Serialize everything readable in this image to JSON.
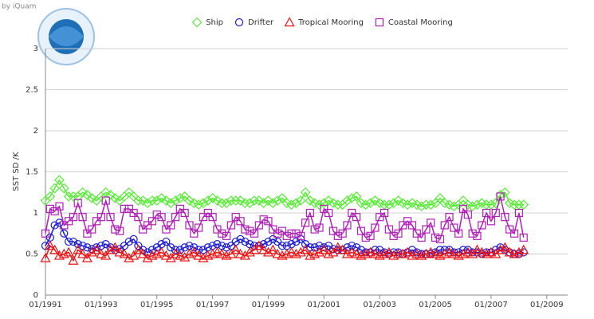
{
  "chart_data": {
    "type": "line",
    "credit": "by iQuam",
    "ylabel": "SST SD /K",
    "x": [
      "1991-01",
      "1991-03",
      "1991-05",
      "1991-07",
      "1991-09",
      "1991-11",
      "1992-01",
      "1992-03",
      "1992-05",
      "1992-07",
      "1992-09",
      "1992-11",
      "1993-01",
      "1993-03",
      "1993-05",
      "1993-07",
      "1993-09",
      "1993-11",
      "1994-01",
      "1994-03",
      "1994-05",
      "1994-07",
      "1994-09",
      "1994-11",
      "1995-01",
      "1995-03",
      "1995-05",
      "1995-07",
      "1995-09",
      "1995-11",
      "1996-01",
      "1996-03",
      "1996-05",
      "1996-07",
      "1996-09",
      "1996-11",
      "1997-01",
      "1997-03",
      "1997-05",
      "1997-07",
      "1997-09",
      "1997-11",
      "1998-01",
      "1998-03",
      "1998-05",
      "1998-07",
      "1998-09",
      "1998-11",
      "1999-01",
      "1999-03",
      "1999-05",
      "1999-07",
      "1999-09",
      "1999-11",
      "2000-01",
      "2000-03",
      "2000-05",
      "2000-07",
      "2000-09",
      "2000-11",
      "2001-01",
      "2001-03",
      "2001-05",
      "2001-07",
      "2001-09",
      "2001-11",
      "2002-01",
      "2002-03",
      "2002-05",
      "2002-07",
      "2002-09",
      "2002-11",
      "2003-01",
      "2003-03",
      "2003-05",
      "2003-07",
      "2003-09",
      "2003-11",
      "2004-01",
      "2004-03",
      "2004-05",
      "2004-07",
      "2004-09",
      "2004-11",
      "2005-01",
      "2005-03",
      "2005-05",
      "2005-07",
      "2005-09",
      "2005-11",
      "2006-01",
      "2006-03",
      "2006-05",
      "2006-07",
      "2006-09",
      "2006-11",
      "2007-01",
      "2007-03",
      "2007-05",
      "2007-07",
      "2007-09",
      "2007-11",
      "2008-01",
      "2008-03"
    ],
    "series": [
      {
        "name": "Ship",
        "color": "#55ee33",
        "marker": "diamond",
        "values": [
          1.15,
          1.2,
          1.3,
          1.4,
          1.3,
          1.2,
          1.2,
          1.2,
          1.25,
          1.22,
          1.18,
          1.15,
          1.2,
          1.25,
          1.22,
          1.18,
          1.15,
          1.2,
          1.25,
          1.2,
          1.15,
          1.15,
          1.12,
          1.15,
          1.15,
          1.18,
          1.15,
          1.12,
          1.15,
          1.18,
          1.2,
          1.15,
          1.12,
          1.1,
          1.12,
          1.15,
          1.18,
          1.15,
          1.12,
          1.12,
          1.15,
          1.15,
          1.15,
          1.12,
          1.12,
          1.15,
          1.15,
          1.12,
          1.15,
          1.12,
          1.15,
          1.18,
          1.12,
          1.1,
          1.12,
          1.15,
          1.25,
          1.15,
          1.12,
          1.1,
          1.12,
          1.15,
          1.12,
          1.1,
          1.1,
          1.15,
          1.18,
          1.2,
          1.12,
          1.1,
          1.12,
          1.15,
          1.12,
          1.1,
          1.1,
          1.12,
          1.15,
          1.12,
          1.1,
          1.12,
          1.1,
          1.08,
          1.1,
          1.1,
          1.12,
          1.18,
          1.12,
          1.1,
          1.08,
          1.1,
          1.15,
          1.1,
          1.08,
          1.1,
          1.12,
          1.1,
          1.1,
          1.12,
          1.22,
          1.25,
          1.12,
          1.1,
          1.1,
          1.1
        ]
      },
      {
        "name": "Drifter",
        "color": "#1a1ad8",
        "marker": "circle",
        "values": [
          0.6,
          0.7,
          0.85,
          0.88,
          0.75,
          0.65,
          0.65,
          0.62,
          0.6,
          0.58,
          0.56,
          0.58,
          0.6,
          0.62,
          0.58,
          0.55,
          0.56,
          0.6,
          0.65,
          0.68,
          0.6,
          0.55,
          0.52,
          0.55,
          0.58,
          0.62,
          0.65,
          0.58,
          0.55,
          0.55,
          0.58,
          0.6,
          0.58,
          0.55,
          0.55,
          0.58,
          0.6,
          0.62,
          0.6,
          0.58,
          0.6,
          0.65,
          0.68,
          0.65,
          0.62,
          0.6,
          0.6,
          0.62,
          0.65,
          0.68,
          0.65,
          0.6,
          0.6,
          0.62,
          0.65,
          0.68,
          0.62,
          0.58,
          0.58,
          0.6,
          0.58,
          0.6,
          0.56,
          0.55,
          0.55,
          0.58,
          0.6,
          0.58,
          0.55,
          0.52,
          0.52,
          0.55,
          0.55,
          0.52,
          0.5,
          0.52,
          0.52,
          0.5,
          0.52,
          0.55,
          0.52,
          0.5,
          0.5,
          0.5,
          0.52,
          0.55,
          0.55,
          0.55,
          0.52,
          0.52,
          0.55,
          0.55,
          0.52,
          0.52,
          0.5,
          0.52,
          0.52,
          0.55,
          0.58,
          0.55,
          0.52,
          0.5,
          0.5,
          0.52
        ]
      },
      {
        "name": "Tropical Mooring",
        "color": "#ee1111",
        "marker": "triangle",
        "values": [
          0.45,
          0.6,
          0.55,
          0.48,
          0.5,
          0.52,
          0.42,
          0.55,
          0.5,
          0.45,
          0.52,
          0.55,
          0.5,
          0.48,
          0.55,
          0.58,
          0.52,
          0.5,
          0.45,
          0.48,
          0.55,
          0.5,
          0.45,
          0.48,
          0.5,
          0.52,
          0.48,
          0.45,
          0.5,
          0.48,
          0.46,
          0.5,
          0.52,
          0.48,
          0.45,
          0.48,
          0.5,
          0.52,
          0.5,
          0.48,
          0.5,
          0.55,
          0.5,
          0.48,
          0.52,
          0.55,
          0.6,
          0.55,
          0.52,
          0.55,
          0.5,
          0.48,
          0.5,
          0.52,
          0.5,
          0.52,
          0.55,
          0.48,
          0.5,
          0.52,
          0.55,
          0.5,
          0.52,
          0.58,
          0.55,
          0.5,
          0.52,
          0.5,
          0.48,
          0.5,
          0.52,
          0.5,
          0.48,
          0.5,
          0.52,
          0.48,
          0.5,
          0.5,
          0.52,
          0.48,
          0.5,
          0.48,
          0.5,
          0.52,
          0.5,
          0.48,
          0.5,
          0.52,
          0.5,
          0.48,
          0.5,
          0.52,
          0.5,
          0.55,
          0.52,
          0.5,
          0.52,
          0.5,
          0.55,
          0.58,
          0.52,
          0.5,
          0.52,
          0.55
        ]
      },
      {
        "name": "Coastal Mooring",
        "color": "#b020b8",
        "marker": "square",
        "values": [
          0.75,
          1.05,
          1.02,
          1.08,
          0.85,
          0.9,
          0.95,
          1.12,
          0.95,
          0.75,
          0.8,
          0.9,
          0.95,
          1.15,
          0.95,
          0.8,
          0.78,
          1.05,
          1.05,
          1.0,
          0.95,
          0.8,
          0.85,
          0.9,
          0.98,
          0.95,
          0.8,
          0.85,
          0.95,
          1.05,
          1.0,
          0.85,
          0.75,
          0.82,
          0.95,
          1.0,
          0.95,
          0.8,
          0.75,
          0.72,
          0.85,
          0.95,
          0.9,
          0.8,
          0.78,
          0.75,
          0.85,
          0.92,
          0.9,
          0.8,
          0.75,
          0.78,
          0.72,
          0.75,
          0.75,
          0.72,
          0.88,
          1.0,
          0.8,
          0.82,
          1.05,
          1.0,
          0.78,
          0.72,
          0.75,
          0.85,
          1.0,
          0.95,
          0.78,
          0.7,
          0.72,
          0.82,
          0.95,
          1.0,
          0.8,
          0.72,
          0.75,
          0.85,
          0.9,
          0.85,
          0.75,
          0.7,
          0.8,
          0.88,
          0.7,
          0.68,
          0.85,
          0.95,
          0.82,
          0.75,
          1.05,
          0.98,
          0.75,
          0.72,
          0.85,
          1.0,
          0.9,
          1.0,
          1.2,
          0.95,
          0.8,
          0.75,
          1.0,
          0.7
        ]
      }
    ],
    "xlim": [
      "1991-01",
      "2009-10"
    ],
    "xticks": [
      {
        "value": "1991-01",
        "label": "01/1991"
      },
      {
        "value": "1993-01",
        "label": "01/1993"
      },
      {
        "value": "1995-01",
        "label": "01/1995"
      },
      {
        "value": "1997-01",
        "label": "01/1997"
      },
      {
        "value": "1999-01",
        "label": "01/1999"
      },
      {
        "value": "2001-01",
        "label": "01/2001"
      },
      {
        "value": "2003-01",
        "label": "01/2003"
      },
      {
        "value": "2005-01",
        "label": "01/2005"
      },
      {
        "value": "2007-01",
        "label": "01/2007"
      },
      {
        "value": "2009-01",
        "label": "01/2009"
      }
    ],
    "ylim": [
      0,
      3
    ],
    "yticks": [
      0,
      0.5,
      1,
      1.5,
      2,
      2.5,
      3
    ],
    "grid": true,
    "legend": "top"
  }
}
